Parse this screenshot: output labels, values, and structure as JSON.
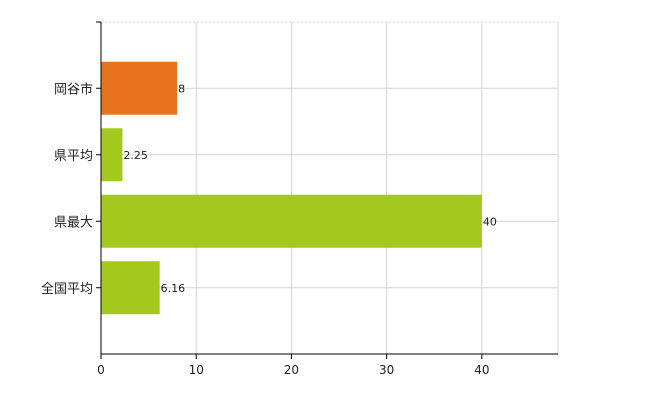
{
  "chart_data": {
    "type": "bar",
    "orientation": "horizontal",
    "categories": [
      "岡谷市",
      "県平均",
      "県最大",
      "全国平均"
    ],
    "values": [
      8,
      2.25,
      40,
      6.16
    ],
    "data_labels": [
      "8",
      "2.25",
      "40",
      "6.16"
    ],
    "bar_colors": [
      "#e8731f",
      "#a3c81e",
      "#a3c81e",
      "#a3c81e"
    ],
    "xlim": [
      0,
      48
    ],
    "x_ticks": [
      0,
      10,
      20,
      30,
      40
    ],
    "x_tick_labels": [
      "0",
      "10",
      "20",
      "30",
      "40"
    ],
    "grid": true,
    "grid_color": "#d4d4d4",
    "title": "",
    "xlabel": "",
    "ylabel": ""
  }
}
